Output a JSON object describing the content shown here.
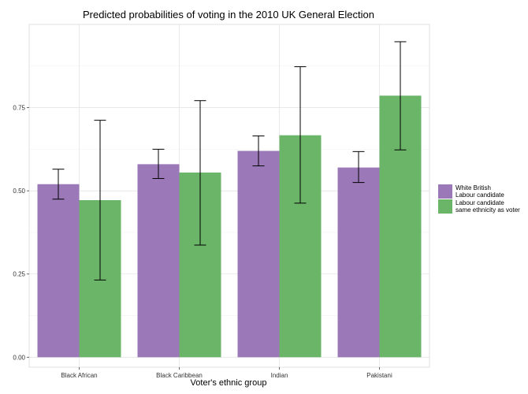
{
  "chart_data": {
    "type": "bar",
    "title": "Predicted probabilities of voting in the 2010 UK General Election",
    "xlabel": "Voter's ethnic group",
    "ylabel": "",
    "ylim": [
      -0.03,
      1.0
    ],
    "yticks": [
      "0.00",
      "0.25",
      "0.50",
      "0.75"
    ],
    "grid": true,
    "legend_position": "right",
    "categories": [
      "Black African",
      "Black Caribbean",
      "Indian",
      "Pakistani"
    ],
    "series": [
      {
        "name": "White British\nLabour candidate",
        "color": "#9B78B8",
        "values": [
          0.52,
          0.58,
          0.62,
          0.57
        ],
        "err_low": [
          0.475,
          0.537,
          0.575,
          0.525
        ],
        "err_high": [
          0.565,
          0.625,
          0.665,
          0.618
        ]
      },
      {
        "name": "Labour candidate\nsame ethnicity as voter",
        "color": "#6BB569",
        "values": [
          0.472,
          0.555,
          0.667,
          0.786
        ],
        "err_low": [
          0.232,
          0.337,
          0.463,
          0.623
        ],
        "err_high": [
          0.712,
          0.771,
          0.873,
          0.948
        ]
      }
    ]
  },
  "colors": {
    "panel_background": "#ffffff",
    "grid_major": "#e4e4e4",
    "grid_minor": "#f2f2f2",
    "panel_border": "#d9d9d9",
    "error_bar": "#000000"
  }
}
